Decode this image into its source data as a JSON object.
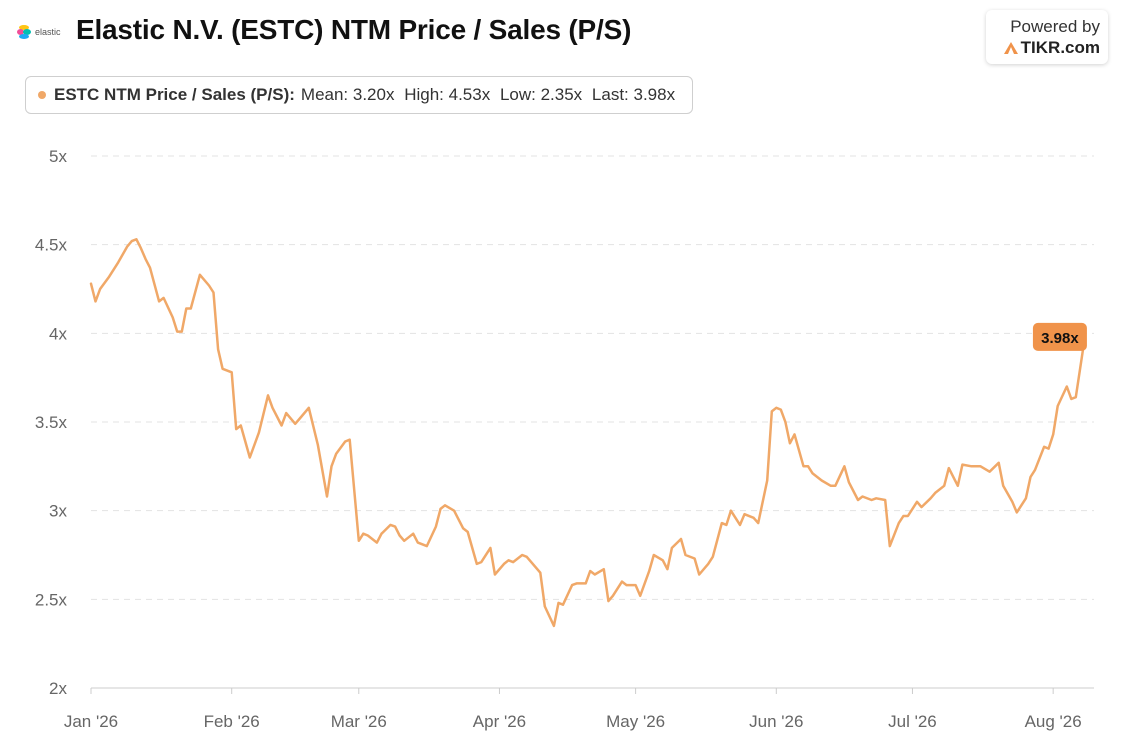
{
  "header": {
    "logo_text": "elastic",
    "title": "Elastic N.V. (ESTC) NTM Price / Sales (P/S)",
    "powered_by_line1": "Powered by",
    "powered_by_line2": "TIKR.com",
    "powered_icon": "tikr-logo-icon"
  },
  "legend": {
    "series_name": "ESTC NTM Price / Sales (P/S):",
    "mean": "Mean: 3.20x",
    "high": "High: 4.53x",
    "low": "Low: 2.35x",
    "last": "Last: 3.98x"
  },
  "colors": {
    "series": "#f0a868",
    "badge": "#f0934a",
    "grid": "#e3e3e3",
    "axis_text": "#666666"
  },
  "chart_data": {
    "type": "line",
    "title": "Elastic N.V. (ESTC) NTM Price / Sales (P/S)",
    "xlabel": "",
    "ylabel": "",
    "ylim": [
      2,
      5
    ],
    "xlim": [
      "2026-01-01",
      "2026-08-10"
    ],
    "grid": true,
    "legend_position": "top-left",
    "y_ticks": [
      {
        "value": 2,
        "label": "2x"
      },
      {
        "value": 2.5,
        "label": "2.5x"
      },
      {
        "value": 3,
        "label": "3x"
      },
      {
        "value": 3.5,
        "label": "3.5x"
      },
      {
        "value": 4,
        "label": "4x"
      },
      {
        "value": 4.5,
        "label": "4.5x"
      },
      {
        "value": 5,
        "label": "5x"
      }
    ],
    "x_ticks": [
      {
        "date": "2026-01-01",
        "label": "Jan '26"
      },
      {
        "date": "2026-02-01",
        "label": "Feb '26"
      },
      {
        "date": "2026-03-01",
        "label": "Mar '26"
      },
      {
        "date": "2026-04-01",
        "label": "Apr '26"
      },
      {
        "date": "2026-05-01",
        "label": "May '26"
      },
      {
        "date": "2026-06-01",
        "label": "Jun '26"
      },
      {
        "date": "2026-07-01",
        "label": "Jul '26"
      },
      {
        "date": "2026-08-01",
        "label": "Aug '26"
      }
    ],
    "last_label": "3.98x",
    "series": [
      {
        "name": "ESTC NTM Price / Sales (P/S)",
        "points": [
          [
            "2026-01-01",
            4.28
          ],
          [
            "2026-01-02",
            4.18
          ],
          [
            "2026-01-03",
            4.25
          ],
          [
            "2026-01-05",
            4.32
          ],
          [
            "2026-01-07",
            4.4
          ],
          [
            "2026-01-09",
            4.49
          ],
          [
            "2026-01-10",
            4.52
          ],
          [
            "2026-01-11",
            4.53
          ],
          [
            "2026-01-12",
            4.48
          ],
          [
            "2026-01-13",
            4.42
          ],
          [
            "2026-01-14",
            4.37
          ],
          [
            "2026-01-16",
            4.18
          ],
          [
            "2026-01-17",
            4.2
          ],
          [
            "2026-01-19",
            4.09
          ],
          [
            "2026-01-20",
            4.01
          ],
          [
            "2026-01-21",
            4.01
          ],
          [
            "2026-01-22",
            4.14
          ],
          [
            "2026-01-23",
            4.14
          ],
          [
            "2026-01-25",
            4.33
          ],
          [
            "2026-01-27",
            4.27
          ],
          [
            "2026-01-28",
            4.23
          ],
          [
            "2026-01-29",
            3.91
          ],
          [
            "2026-01-30",
            3.8
          ],
          [
            "2026-02-01",
            3.78
          ],
          [
            "2026-02-02",
            3.46
          ],
          [
            "2026-02-03",
            3.48
          ],
          [
            "2026-02-05",
            3.3
          ],
          [
            "2026-02-07",
            3.44
          ],
          [
            "2026-02-09",
            3.65
          ],
          [
            "2026-02-10",
            3.58
          ],
          [
            "2026-02-12",
            3.48
          ],
          [
            "2026-02-13",
            3.55
          ],
          [
            "2026-02-15",
            3.49
          ],
          [
            "2026-02-16",
            3.52
          ],
          [
            "2026-02-18",
            3.58
          ],
          [
            "2026-02-20",
            3.37
          ],
          [
            "2026-02-22",
            3.08
          ],
          [
            "2026-02-23",
            3.25
          ],
          [
            "2026-02-24",
            3.32
          ],
          [
            "2026-02-26",
            3.39
          ],
          [
            "2026-02-27",
            3.4
          ],
          [
            "2026-03-01",
            2.83
          ],
          [
            "2026-03-02",
            2.87
          ],
          [
            "2026-03-03",
            2.86
          ],
          [
            "2026-03-05",
            2.82
          ],
          [
            "2026-03-06",
            2.87
          ],
          [
            "2026-03-08",
            2.92
          ],
          [
            "2026-03-09",
            2.91
          ],
          [
            "2026-03-10",
            2.86
          ],
          [
            "2026-03-11",
            2.83
          ],
          [
            "2026-03-13",
            2.87
          ],
          [
            "2026-03-14",
            2.82
          ],
          [
            "2026-03-16",
            2.8
          ],
          [
            "2026-03-18",
            2.91
          ],
          [
            "2026-03-19",
            3.01
          ],
          [
            "2026-03-20",
            3.03
          ],
          [
            "2026-03-22",
            3.0
          ],
          [
            "2026-03-24",
            2.9
          ],
          [
            "2026-03-25",
            2.88
          ],
          [
            "2026-03-27",
            2.7
          ],
          [
            "2026-03-28",
            2.71
          ],
          [
            "2026-03-30",
            2.79
          ],
          [
            "2026-03-31",
            2.64
          ],
          [
            "2026-04-02",
            2.7
          ],
          [
            "2026-04-03",
            2.72
          ],
          [
            "2026-04-04",
            2.71
          ],
          [
            "2026-04-06",
            2.75
          ],
          [
            "2026-04-07",
            2.74
          ],
          [
            "2026-04-08",
            2.71
          ],
          [
            "2026-04-10",
            2.65
          ],
          [
            "2026-04-11",
            2.46
          ],
          [
            "2026-04-13",
            2.35
          ],
          [
            "2026-04-14",
            2.48
          ],
          [
            "2026-04-15",
            2.47
          ],
          [
            "2026-04-17",
            2.58
          ],
          [
            "2026-04-18",
            2.59
          ],
          [
            "2026-04-20",
            2.59
          ],
          [
            "2026-04-21",
            2.66
          ],
          [
            "2026-04-22",
            2.64
          ],
          [
            "2026-04-24",
            2.67
          ],
          [
            "2026-04-25",
            2.49
          ],
          [
            "2026-04-26",
            2.52
          ],
          [
            "2026-04-28",
            2.6
          ],
          [
            "2026-04-29",
            2.58
          ],
          [
            "2026-05-01",
            2.58
          ],
          [
            "2026-05-02",
            2.52
          ],
          [
            "2026-05-04",
            2.66
          ],
          [
            "2026-05-05",
            2.75
          ],
          [
            "2026-05-07",
            2.72
          ],
          [
            "2026-05-08",
            2.67
          ],
          [
            "2026-05-09",
            2.79
          ],
          [
            "2026-05-11",
            2.84
          ],
          [
            "2026-05-12",
            2.75
          ],
          [
            "2026-05-14",
            2.73
          ],
          [
            "2026-05-15",
            2.64
          ],
          [
            "2026-05-17",
            2.7
          ],
          [
            "2026-05-18",
            2.74
          ],
          [
            "2026-05-20",
            2.93
          ],
          [
            "2026-05-21",
            2.92
          ],
          [
            "2026-05-22",
            3.0
          ],
          [
            "2026-05-24",
            2.92
          ],
          [
            "2026-05-25",
            2.98
          ],
          [
            "2026-05-27",
            2.96
          ],
          [
            "2026-05-28",
            2.93
          ],
          [
            "2026-05-30",
            3.17
          ],
          [
            "2026-05-31",
            3.56
          ],
          [
            "2026-06-01",
            3.58
          ],
          [
            "2026-06-02",
            3.57
          ],
          [
            "2026-06-03",
            3.5
          ],
          [
            "2026-06-04",
            3.38
          ],
          [
            "2026-06-05",
            3.43
          ],
          [
            "2026-06-07",
            3.25
          ],
          [
            "2026-06-08",
            3.25
          ],
          [
            "2026-06-09",
            3.21
          ],
          [
            "2026-06-11",
            3.17
          ],
          [
            "2026-06-13",
            3.14
          ],
          [
            "2026-06-14",
            3.14
          ],
          [
            "2026-06-16",
            3.25
          ],
          [
            "2026-06-17",
            3.16
          ],
          [
            "2026-06-19",
            3.06
          ],
          [
            "2026-06-20",
            3.08
          ],
          [
            "2026-06-22",
            3.06
          ],
          [
            "2026-06-23",
            3.07
          ],
          [
            "2026-06-25",
            3.06
          ],
          [
            "2026-06-26",
            2.8
          ],
          [
            "2026-06-28",
            2.93
          ],
          [
            "2026-06-29",
            2.97
          ],
          [
            "2026-06-30",
            2.97
          ],
          [
            "2026-07-02",
            3.05
          ],
          [
            "2026-07-03",
            3.02
          ],
          [
            "2026-07-05",
            3.07
          ],
          [
            "2026-07-06",
            3.1
          ],
          [
            "2026-07-08",
            3.14
          ],
          [
            "2026-07-09",
            3.24
          ],
          [
            "2026-07-11",
            3.14
          ],
          [
            "2026-07-12",
            3.26
          ],
          [
            "2026-07-14",
            3.25
          ],
          [
            "2026-07-16",
            3.25
          ],
          [
            "2026-07-18",
            3.22
          ],
          [
            "2026-07-20",
            3.27
          ],
          [
            "2026-07-21",
            3.14
          ],
          [
            "2026-07-23",
            3.05
          ],
          [
            "2026-07-24",
            2.99
          ],
          [
            "2026-07-26",
            3.07
          ],
          [
            "2026-07-27",
            3.19
          ],
          [
            "2026-07-28",
            3.23
          ],
          [
            "2026-07-30",
            3.36
          ],
          [
            "2026-07-31",
            3.35
          ],
          [
            "2026-08-01",
            3.43
          ],
          [
            "2026-08-02",
            3.59
          ],
          [
            "2026-08-04",
            3.7
          ],
          [
            "2026-08-05",
            3.63
          ],
          [
            "2026-08-06",
            3.64
          ],
          [
            "2026-08-08",
            3.98
          ]
        ]
      }
    ]
  }
}
